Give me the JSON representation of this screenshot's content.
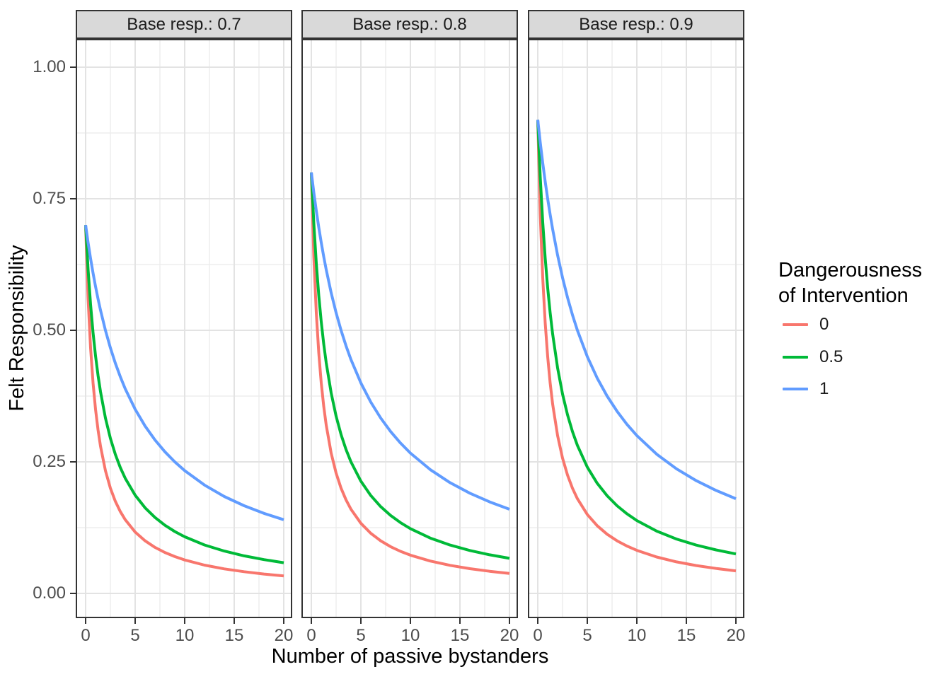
{
  "chart_data": {
    "type": "line",
    "title": "",
    "xlabel": "Number of passive bystanders",
    "ylabel": "Felt Responsibility",
    "xlim": [
      0,
      20
    ],
    "ylim": [
      0,
      1
    ],
    "grid": true,
    "legend_position": "right",
    "x_major": [
      0,
      5,
      10,
      15,
      20
    ],
    "x_minor": [
      2.5,
      7.5,
      12.5,
      17.5
    ],
    "y_major": [
      0,
      0.25,
      0.5,
      0.75,
      1
    ],
    "y_minor": [
      0.125,
      0.375,
      0.625,
      0.875
    ],
    "x_tick_labels": [
      "0",
      "5",
      "10",
      "15",
      "20"
    ],
    "y_tick_labels": [
      "1.00",
      "0.75",
      "0.50",
      "0.25",
      "0.00"
    ],
    "theme": {
      "strip_fill": "#D9D9D9",
      "panel_border": "#333333",
      "grid_major": "#E3E3E3",
      "grid_minor": "#EDEDED"
    },
    "legend": {
      "title_line1": "Dangerousness",
      "title_line2": "of Intervention",
      "entries": [
        {
          "label": "0",
          "color": "#F8766D"
        },
        {
          "label": "0.5",
          "color": "#00BA38"
        },
        {
          "label": "1",
          "color": "#619CFF"
        }
      ]
    },
    "x": [
      0,
      0.25,
      0.5,
      0.75,
      1,
      1.25,
      1.5,
      2,
      2.5,
      3,
      3.5,
      4,
      5,
      6,
      7,
      8,
      9,
      10,
      12,
      14,
      16,
      18,
      20
    ],
    "facets": [
      {
        "label": "Base resp.: 0.7",
        "base_resp": 0.7,
        "series": [
          {
            "name": "0",
            "color": "#F8766D",
            "y": [
              0.7,
              0.56,
              0.4667,
              0.4,
              0.35,
              0.3111,
              0.28,
              0.2333,
              0.2,
              0.175,
              0.1556,
              0.14,
              0.1167,
              0.1,
              0.0875,
              0.0778,
              0.07,
              0.0636,
              0.0538,
              0.0467,
              0.0412,
              0.0368,
              0.0333
            ]
          },
          {
            "name": "0.5",
            "color": "#00BA38",
            "y": [
              0.7,
              0.6154,
              0.549,
              0.4956,
              0.4516,
              0.4148,
              0.3836,
              0.3333,
              0.2947,
              0.2642,
              0.2393,
              0.2188,
              0.1867,
              0.1628,
              0.1443,
              0.1296,
              0.1176,
              0.1077,
              0.0921,
              0.0805,
              0.0714,
              0.0642,
              0.0583
            ]
          },
          {
            "name": "1",
            "color": "#619CFF",
            "y": [
              0.7,
              0.6667,
              0.6364,
              0.6087,
              0.5833,
              0.56,
              0.5385,
              0.5,
              0.4667,
              0.4375,
              0.4118,
              0.3889,
              0.35,
              0.3182,
              0.2917,
              0.2692,
              0.25,
              0.2333,
              0.2059,
              0.1842,
              0.1667,
              0.1522,
              0.14
            ]
          }
        ]
      },
      {
        "label": "Base resp.: 0.8",
        "base_resp": 0.8,
        "series": [
          {
            "name": "0",
            "color": "#F8766D",
            "y": [
              0.8,
              0.64,
              0.5333,
              0.4571,
              0.4,
              0.3556,
              0.32,
              0.2667,
              0.2286,
              0.2,
              0.1778,
              0.16,
              0.1333,
              0.1143,
              0.1,
              0.0889,
              0.08,
              0.0727,
              0.0615,
              0.0533,
              0.0471,
              0.0421,
              0.0381
            ]
          },
          {
            "name": "0.5",
            "color": "#00BA38",
            "y": [
              0.8,
              0.7033,
              0.6275,
              0.5664,
              0.5161,
              0.4741,
              0.4384,
              0.381,
              0.3368,
              0.3019,
              0.2735,
              0.25,
              0.2133,
              0.186,
              0.1649,
              0.1481,
              0.1345,
              0.1231,
              0.1053,
              0.092,
              0.0816,
              0.0734,
              0.0667
            ]
          },
          {
            "name": "1",
            "color": "#619CFF",
            "y": [
              0.8,
              0.7619,
              0.7273,
              0.6957,
              0.6667,
              0.64,
              0.6154,
              0.5714,
              0.5333,
              0.5,
              0.4706,
              0.4444,
              0.4,
              0.3636,
              0.3333,
              0.3077,
              0.2857,
              0.2667,
              0.2353,
              0.2105,
              0.1905,
              0.1739,
              0.16
            ]
          }
        ]
      },
      {
        "label": "Base resp.: 0.9",
        "base_resp": 0.9,
        "series": [
          {
            "name": "0",
            "color": "#F8766D",
            "y": [
              0.9,
              0.72,
              0.6,
              0.5143,
              0.45,
              0.4,
              0.36,
              0.3,
              0.2571,
              0.225,
              0.2,
              0.18,
              0.15,
              0.1286,
              0.1125,
              0.1,
              0.09,
              0.0818,
              0.0692,
              0.06,
              0.0529,
              0.0474,
              0.0429
            ]
          },
          {
            "name": "0.5",
            "color": "#00BA38",
            "y": [
              0.9,
              0.7912,
              0.7059,
              0.6372,
              0.5806,
              0.5333,
              0.4932,
              0.4286,
              0.3789,
              0.3396,
              0.3077,
              0.2813,
              0.24,
              0.2093,
              0.1856,
              0.1667,
              0.1513,
              0.1385,
              0.1184,
              0.1034,
              0.0918,
              0.0826,
              0.075
            ]
          },
          {
            "name": "1",
            "color": "#619CFF",
            "y": [
              0.9,
              0.8571,
              0.8182,
              0.7826,
              0.75,
              0.72,
              0.6923,
              0.6429,
              0.6,
              0.5625,
              0.5294,
              0.5,
              0.45,
              0.4091,
              0.375,
              0.3462,
              0.3214,
              0.3,
              0.2647,
              0.2368,
              0.2143,
              0.1957,
              0.18
            ]
          }
        ]
      }
    ]
  }
}
